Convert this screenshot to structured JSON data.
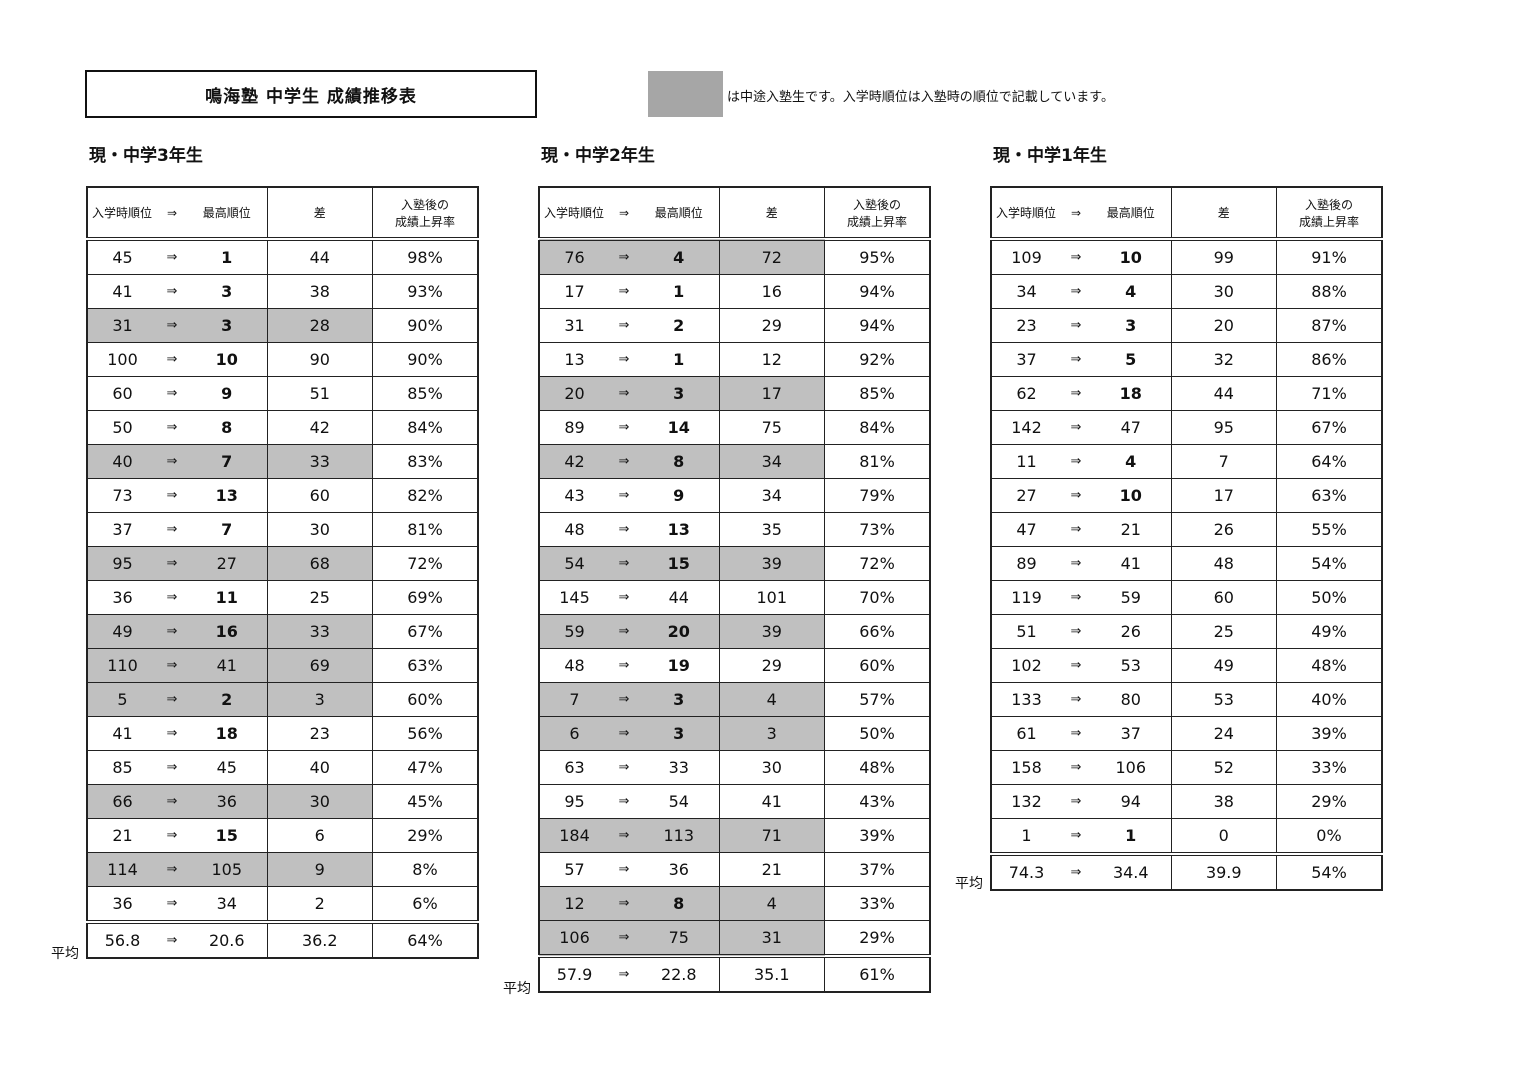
{
  "title": "鳴海塾 中学生 成績推移表",
  "legend": {
    "color": "#a6a6a6",
    "text": "は中途入塾生です。入学時順位は入塾時の順位で記載しています。"
  },
  "headers": {
    "entry": "入学時順位",
    "arrow": "⇒",
    "best": "最高順位",
    "diff": "差",
    "rate_line1": "入塾後の",
    "rate_line2": "成績上昇率"
  },
  "avg_label": "平均",
  "sections": [
    {
      "title": "現・中学3年生",
      "rows": [
        [
          45,
          1,
          44,
          "98%",
          false
        ],
        [
          41,
          3,
          38,
          "93%",
          false
        ],
        [
          31,
          3,
          28,
          "90%",
          true
        ],
        [
          100,
          10,
          90,
          "90%",
          false
        ],
        [
          60,
          9,
          51,
          "85%",
          false
        ],
        [
          50,
          8,
          42,
          "84%",
          false
        ],
        [
          40,
          7,
          33,
          "83%",
          true
        ],
        [
          73,
          13,
          60,
          "82%",
          false
        ],
        [
          37,
          7,
          30,
          "81%",
          false
        ],
        [
          95,
          27,
          68,
          "72%",
          true
        ],
        [
          36,
          11,
          25,
          "69%",
          false
        ],
        [
          49,
          16,
          33,
          "67%",
          true
        ],
        [
          110,
          41,
          69,
          "63%",
          true
        ],
        [
          5,
          2,
          3,
          "60%",
          true
        ],
        [
          41,
          18,
          23,
          "56%",
          false
        ],
        [
          85,
          45,
          40,
          "47%",
          false
        ],
        [
          66,
          36,
          30,
          "45%",
          true
        ],
        [
          21,
          15,
          6,
          "29%",
          false
        ],
        [
          114,
          105,
          9,
          "8%",
          true
        ],
        [
          36,
          34,
          2,
          "6%",
          false
        ]
      ],
      "average": [
        "56.8",
        "20.6",
        "36.2",
        "64%"
      ]
    },
    {
      "title": "現・中学2年生",
      "rows": [
        [
          76,
          4,
          72,
          "95%",
          true
        ],
        [
          17,
          1,
          16,
          "94%",
          false
        ],
        [
          31,
          2,
          29,
          "94%",
          false
        ],
        [
          13,
          1,
          12,
          "92%",
          false
        ],
        [
          20,
          3,
          17,
          "85%",
          true
        ],
        [
          89,
          14,
          75,
          "84%",
          false
        ],
        [
          42,
          8,
          34,
          "81%",
          true
        ],
        [
          43,
          9,
          34,
          "79%",
          false
        ],
        [
          48,
          13,
          35,
          "73%",
          false
        ],
        [
          54,
          15,
          39,
          "72%",
          true
        ],
        [
          145,
          44,
          101,
          "70%",
          false
        ],
        [
          59,
          20,
          39,
          "66%",
          true
        ],
        [
          48,
          19,
          29,
          "60%",
          false
        ],
        [
          7,
          3,
          4,
          "57%",
          true
        ],
        [
          6,
          3,
          3,
          "50%",
          true
        ],
        [
          63,
          33,
          30,
          "48%",
          false
        ],
        [
          95,
          54,
          41,
          "43%",
          false
        ],
        [
          184,
          113,
          71,
          "39%",
          true
        ],
        [
          57,
          36,
          21,
          "37%",
          false
        ],
        [
          12,
          8,
          4,
          "33%",
          true
        ],
        [
          106,
          75,
          31,
          "29%",
          true
        ]
      ],
      "average": [
        "57.9",
        "22.8",
        "35.1",
        "61%"
      ]
    },
    {
      "title": "現・中学1年生",
      "rows": [
        [
          109,
          10,
          99,
          "91%",
          false
        ],
        [
          34,
          4,
          30,
          "88%",
          false
        ],
        [
          23,
          3,
          20,
          "87%",
          false
        ],
        [
          37,
          5,
          32,
          "86%",
          false
        ],
        [
          62,
          18,
          44,
          "71%",
          false
        ],
        [
          142,
          47,
          95,
          "67%",
          false
        ],
        [
          11,
          4,
          7,
          "64%",
          false
        ],
        [
          27,
          10,
          17,
          "63%",
          false
        ],
        [
          47,
          21,
          26,
          "55%",
          false
        ],
        [
          89,
          41,
          48,
          "54%",
          false
        ],
        [
          119,
          59,
          60,
          "50%",
          false
        ],
        [
          51,
          26,
          25,
          "49%",
          false
        ],
        [
          102,
          53,
          49,
          "48%",
          false
        ],
        [
          133,
          80,
          53,
          "40%",
          false
        ],
        [
          61,
          37,
          24,
          "39%",
          false
        ],
        [
          158,
          106,
          52,
          "33%",
          false
        ],
        [
          132,
          94,
          38,
          "29%",
          false
        ],
        [
          1,
          1,
          0,
          "0%",
          false
        ]
      ],
      "average": [
        "74.3",
        "34.4",
        "39.9",
        "54%"
      ]
    }
  ]
}
